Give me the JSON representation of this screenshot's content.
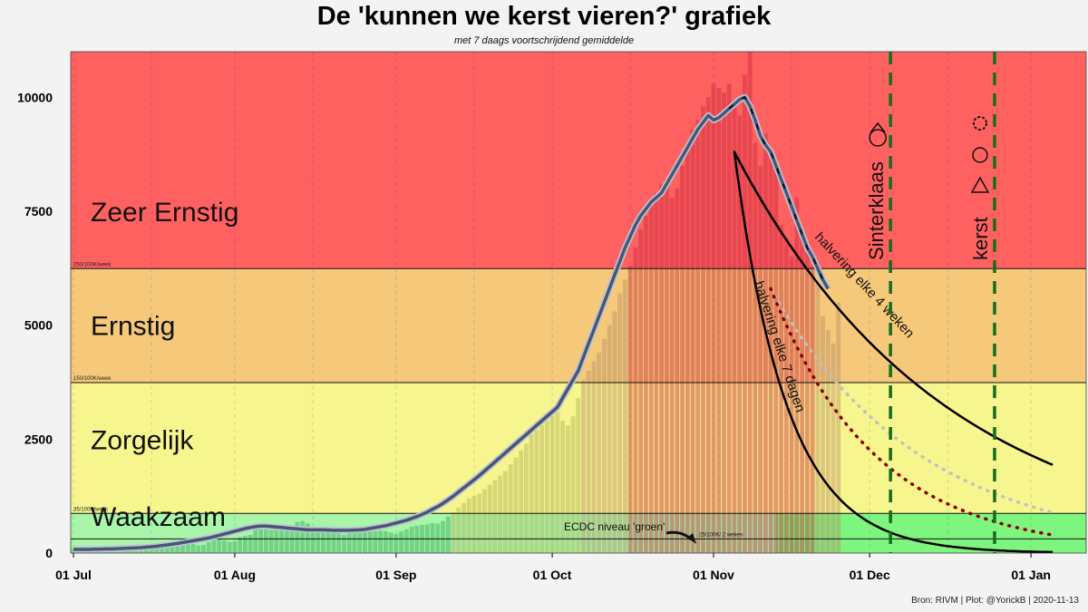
{
  "header": {
    "title": "De 'kunnen we kerst vieren?' grafiek",
    "subtitle": "met 7 daags voortschrijdend gemiddelde"
  },
  "footer": {
    "credit": "Bron: RIVM | Plot: @YorickB  |  2020-11-13"
  },
  "chart_data": {
    "type": "bar",
    "title": "De 'kunnen we kerst vieren?' grafiek",
    "subtitle": "met 7 daags voortschrijdend gemiddelde",
    "xlabel": "",
    "ylabel": "",
    "x_tick_labels": [
      "01 Jul",
      "01 Aug",
      "01 Sep",
      "01 Oct",
      "01 Nov",
      "01 Dec",
      "01 Jan"
    ],
    "y_ticks": [
      0,
      2500,
      5000,
      7500,
      10000
    ],
    "ylim": [
      0,
      11000
    ],
    "xlim": [
      "2020-07-01",
      "2021-01-05"
    ],
    "grid": "vertical dashed",
    "zones": [
      {
        "label": "Waakzaam",
        "from": 0,
        "to": 870,
        "color": "#a9f5a9",
        "threshold_label": "35/100K/week"
      },
      {
        "label": "Zorgelijk",
        "from": 870,
        "to": 3740,
        "color": "#f7f58e",
        "threshold_label": "150/100K/week"
      },
      {
        "label": "Ernstig",
        "from": 3740,
        "to": 6240,
        "color": "#f5c87a",
        "threshold_label": "250/100K/week"
      },
      {
        "label": "Zeer Ernstig",
        "from": 6240,
        "to": 11000,
        "color": "#ff6161",
        "threshold_label": ""
      }
    ],
    "ecdc_line": {
      "value": 310,
      "label": "25/100K/ 2 weken",
      "annotation": "ECDC niveau 'groen'"
    },
    "daily_cases": {
      "start_date": "2020-07-01",
      "values": [
        90,
        80,
        80,
        60,
        60,
        70,
        90,
        110,
        90,
        80,
        70,
        70,
        80,
        100,
        130,
        150,
        160,
        150,
        130,
        150,
        200,
        230,
        220,
        200,
        170,
        180,
        240,
        300,
        320,
        280,
        250,
        260,
        350,
        380,
        400,
        520,
        600,
        580,
        500,
        520,
        560,
        590,
        600,
        680,
        700,
        650,
        560,
        500,
        530,
        520,
        500,
        480,
        400,
        430,
        450,
        450,
        460,
        470,
        480,
        490,
        480,
        450,
        420,
        480,
        520,
        580,
        600,
        620,
        630,
        660,
        650,
        700,
        800,
        900,
        1000,
        1100,
        1200,
        1250,
        1300,
        1400,
        1500,
        1600,
        1700,
        1800,
        1950,
        2100,
        2250,
        2400,
        2600,
        2700,
        2800,
        2900,
        3000,
        3100,
        2900,
        2800,
        3000,
        3400,
        3800,
        4000,
        4200,
        4400,
        4700,
        5000,
        5300,
        5700,
        6000,
        6300,
        6700,
        7100,
        7400,
        7700,
        7900,
        8100,
        8200,
        7800,
        8000,
        8500,
        9000,
        9300,
        9500,
        9800,
        10000,
        10300,
        10200,
        10100,
        10300,
        9800,
        9600,
        10500,
        11000,
        9000,
        8500,
        9200,
        8800,
        8500,
        7200,
        6900,
        6500,
        7800,
        7000,
        6600,
        6300,
        5900,
        5200,
        4900,
        4600,
        5500
      ]
    },
    "series": [
      {
        "name": "7 daags voortschrijdend gemiddelde",
        "start_date": "2020-07-01",
        "values": [
          80,
          80,
          80,
          80,
          85,
          85,
          90,
          90,
          95,
          100,
          105,
          110,
          115,
          120,
          130,
          140,
          150,
          165,
          180,
          195,
          210,
          230,
          250,
          270,
          290,
          310,
          330,
          360,
          390,
          420,
          450,
          480,
          510,
          540,
          560,
          580,
          590,
          590,
          580,
          570,
          560,
          550,
          540,
          530,
          520,
          510,
          510,
          510,
          510,
          505,
          500,
          500,
          500,
          500,
          505,
          510,
          520,
          540,
          560,
          580,
          600,
          630,
          660,
          690,
          720,
          760,
          800,
          850,
          900,
          960,
          1020,
          1090,
          1170,
          1250,
          1340,
          1430,
          1520,
          1610,
          1700,
          1800,
          1900,
          2000,
          2100,
          2200,
          2300,
          2400,
          2500,
          2600,
          2700,
          2800,
          2900,
          3000,
          3100,
          3200,
          3400,
          3600,
          3800,
          4000,
          4300,
          4600,
          4900,
          5200,
          5500,
          5800,
          6100,
          6400,
          6700,
          6950,
          7200,
          7400,
          7550,
          7700,
          7800,
          7900,
          8100,
          8300,
          8500,
          8700,
          8900,
          9100,
          9300,
          9450,
          9600,
          9500,
          9550,
          9650,
          9750,
          9850,
          9950,
          10000,
          9800,
          9500,
          9150,
          8950,
          8800,
          8500,
          8200,
          7900,
          7600,
          7300,
          7000,
          6700,
          6500,
          6250,
          6000,
          5800
        ]
      },
      {
        "name": "halvering elke 4 weken",
        "start_date": "2020-11-05",
        "start_value": 8800,
        "halving_days": 28,
        "end_date": "2021-01-05"
      },
      {
        "name": "halvering elke 7 dagen",
        "start_date": "2020-11-05",
        "start_value": 8800,
        "halving_days": 7,
        "end_date": "2021-01-05"
      },
      {
        "name": "",
        "start_date": "2020-11-12",
        "start_value": 5800,
        "halving_days": 20,
        "end_date": "2021-01-05",
        "color": "#c0c0c0"
      },
      {
        "name": "",
        "start_date": "2020-11-12",
        "start_value": 5800,
        "halving_days": 14,
        "end_date": "2021-01-05",
        "color": "#8b0000"
      }
    ],
    "events": [
      {
        "label": "Sinterklaas",
        "date": "2020-12-05",
        "icon": "mitre-emoji-icon"
      },
      {
        "label": "kerst",
        "date": "2020-12-25",
        "icons": [
          "wreath-emoji-icon",
          "santa-emoji-icon",
          "christmas-tree-emoji-icon"
        ]
      }
    ]
  }
}
